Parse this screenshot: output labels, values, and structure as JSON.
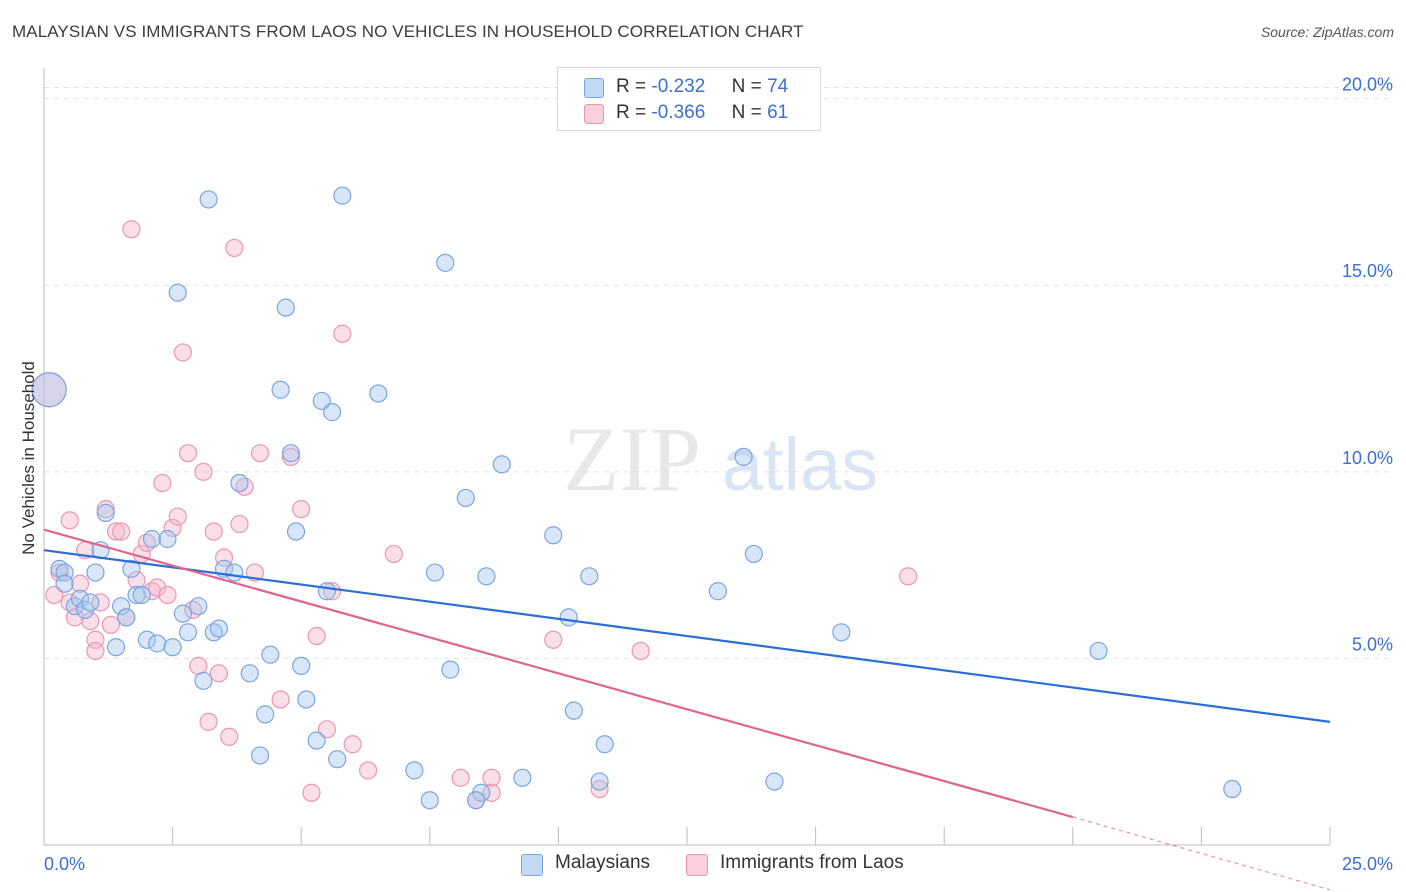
{
  "title": "MALAYSIAN VS IMMIGRANTS FROM LAOS NO VEHICLES IN HOUSEHOLD CORRELATION CHART",
  "source": "Source: ZipAtlas.com",
  "watermark": {
    "zip": "ZIP",
    "atlas": "atlas"
  },
  "legend": {
    "rows": [
      {
        "r_label": "R =",
        "r_value": "-0.232",
        "n_label": "N =",
        "n_value": "74",
        "color": "#a8c8f0"
      },
      {
        "r_label": "R =",
        "r_value": "-0.366",
        "n_label": "N =",
        "n_value": "61",
        "color": "#f7b8cc"
      }
    ]
  },
  "bottom_legend": [
    {
      "label": "Malaysians",
      "color": "#a8c8f0"
    },
    {
      "label": "Immigrants from Laos",
      "color": "#f7b8cc"
    }
  ],
  "colors": {
    "blue_fill": "#a8c8f0",
    "blue_stroke": "#7aa6e0",
    "blue_line": "#2a6fd6",
    "pink_fill": "#f7b8cc",
    "pink_stroke": "#ec95b2",
    "pink_line": "#e0648f",
    "grid": "#e2e2e2",
    "tick_label": "#3b6fd4"
  },
  "chart_data": {
    "type": "scatter",
    "title": "MALAYSIAN VS IMMIGRANTS FROM LAOS NO VEHICLES IN HOUSEHOLD CORRELATION CHART",
    "xlabel": "",
    "ylabel": "No Vehicles in Household",
    "xlim": [
      0,
      25
    ],
    "ylim": [
      0,
      20.5
    ],
    "x_tick_labels": [
      "0.0%",
      "25.0%"
    ],
    "y_ticks": [
      5,
      10,
      15,
      20
    ],
    "y_tick_labels": [
      "5.0%",
      "10.0%",
      "15.0%",
      "20.0%"
    ],
    "grid": true,
    "legend_position": "top-center",
    "series": [
      {
        "name": "Malaysians",
        "color": "#a8c8f0",
        "trend": {
          "x": [
            0,
            25
          ],
          "y": [
            7.9,
            3.3
          ]
        },
        "points": [
          {
            "x": 0.1,
            "y": 12.2,
            "big": true
          },
          {
            "x": 0.3,
            "y": 7.4
          },
          {
            "x": 0.4,
            "y": 7.3
          },
          {
            "x": 0.4,
            "y": 7.0
          },
          {
            "x": 0.6,
            "y": 6.4
          },
          {
            "x": 0.7,
            "y": 6.6
          },
          {
            "x": 0.8,
            "y": 6.3
          },
          {
            "x": 0.9,
            "y": 6.5
          },
          {
            "x": 1.0,
            "y": 7.3
          },
          {
            "x": 1.1,
            "y": 7.9
          },
          {
            "x": 1.2,
            "y": 8.9
          },
          {
            "x": 1.4,
            "y": 5.3
          },
          {
            "x": 1.5,
            "y": 6.4
          },
          {
            "x": 1.6,
            "y": 6.1
          },
          {
            "x": 1.7,
            "y": 7.4
          },
          {
            "x": 1.8,
            "y": 6.7
          },
          {
            "x": 1.9,
            "y": 6.7
          },
          {
            "x": 2.0,
            "y": 5.5
          },
          {
            "x": 2.1,
            "y": 8.2
          },
          {
            "x": 2.2,
            "y": 5.4
          },
          {
            "x": 2.4,
            "y": 8.2
          },
          {
            "x": 2.5,
            "y": 5.3
          },
          {
            "x": 2.6,
            "y": 14.8
          },
          {
            "x": 2.7,
            "y": 6.2
          },
          {
            "x": 2.8,
            "y": 5.7
          },
          {
            "x": 3.0,
            "y": 6.4
          },
          {
            "x": 3.1,
            "y": 4.4
          },
          {
            "x": 3.2,
            "y": 17.3
          },
          {
            "x": 3.3,
            "y": 5.7
          },
          {
            "x": 3.4,
            "y": 5.8
          },
          {
            "x": 3.5,
            "y": 7.4
          },
          {
            "x": 3.7,
            "y": 7.3
          },
          {
            "x": 3.8,
            "y": 9.7
          },
          {
            "x": 4.0,
            "y": 4.6
          },
          {
            "x": 4.2,
            "y": 2.4
          },
          {
            "x": 4.3,
            "y": 3.5
          },
          {
            "x": 4.4,
            "y": 5.1
          },
          {
            "x": 4.6,
            "y": 12.2
          },
          {
            "x": 4.7,
            "y": 14.4
          },
          {
            "x": 4.8,
            "y": 10.5
          },
          {
            "x": 4.9,
            "y": 8.4
          },
          {
            "x": 5.0,
            "y": 4.8
          },
          {
            "x": 5.1,
            "y": 3.9
          },
          {
            "x": 5.3,
            "y": 2.8
          },
          {
            "x": 5.4,
            "y": 11.9
          },
          {
            "x": 5.5,
            "y": 6.8
          },
          {
            "x": 5.6,
            "y": 11.6
          },
          {
            "x": 5.7,
            "y": 2.3
          },
          {
            "x": 5.8,
            "y": 17.4
          },
          {
            "x": 6.5,
            "y": 12.1
          },
          {
            "x": 7.2,
            "y": 2.0
          },
          {
            "x": 7.5,
            "y": 1.2
          },
          {
            "x": 7.6,
            "y": 7.3
          },
          {
            "x": 7.9,
            "y": 4.7
          },
          {
            "x": 7.8,
            "y": 15.6
          },
          {
            "x": 8.2,
            "y": 9.3
          },
          {
            "x": 8.5,
            "y": 1.4
          },
          {
            "x": 8.6,
            "y": 7.2
          },
          {
            "x": 8.9,
            "y": 10.2
          },
          {
            "x": 9.3,
            "y": 1.8
          },
          {
            "x": 9.9,
            "y": 8.3
          },
          {
            "x": 10.2,
            "y": 6.1
          },
          {
            "x": 10.3,
            "y": 3.6
          },
          {
            "x": 10.6,
            "y": 7.2
          },
          {
            "x": 10.8,
            "y": 1.7
          },
          {
            "x": 10.9,
            "y": 2.7
          },
          {
            "x": 13.1,
            "y": 6.8
          },
          {
            "x": 13.6,
            "y": 10.4
          },
          {
            "x": 13.8,
            "y": 7.8
          },
          {
            "x": 14.2,
            "y": 1.7
          },
          {
            "x": 15.5,
            "y": 5.7
          },
          {
            "x": 20.5,
            "y": 5.2
          },
          {
            "x": 23.1,
            "y": 1.5
          },
          {
            "x": 8.4,
            "y": 1.2
          }
        ]
      },
      {
        "name": "Immigrants from Laos",
        "color": "#f7b8cc",
        "trend": {
          "x": [
            0,
            20
          ],
          "y": [
            8.45,
            0.75
          ]
        },
        "trend_dashed": {
          "x": [
            20,
            25
          ],
          "y": [
            0.75,
            -1.2
          ]
        },
        "points": [
          {
            "x": 0.1,
            "y": 12.2,
            "big": true
          },
          {
            "x": 0.2,
            "y": 6.7
          },
          {
            "x": 0.3,
            "y": 7.3
          },
          {
            "x": 0.5,
            "y": 6.5
          },
          {
            "x": 0.5,
            "y": 8.7
          },
          {
            "x": 0.6,
            "y": 6.1
          },
          {
            "x": 0.7,
            "y": 7.0
          },
          {
            "x": 0.8,
            "y": 7.9
          },
          {
            "x": 0.9,
            "y": 6.0
          },
          {
            "x": 1.0,
            "y": 5.5
          },
          {
            "x": 1.0,
            "y": 5.2
          },
          {
            "x": 1.1,
            "y": 6.5
          },
          {
            "x": 1.2,
            "y": 9.0
          },
          {
            "x": 1.3,
            "y": 5.9
          },
          {
            "x": 1.4,
            "y": 8.4
          },
          {
            "x": 1.5,
            "y": 8.4
          },
          {
            "x": 1.6,
            "y": 6.1
          },
          {
            "x": 1.7,
            "y": 16.5
          },
          {
            "x": 1.8,
            "y": 7.1
          },
          {
            "x": 1.9,
            "y": 7.8
          },
          {
            "x": 2.0,
            "y": 8.1
          },
          {
            "x": 2.1,
            "y": 6.8
          },
          {
            "x": 2.2,
            "y": 6.9
          },
          {
            "x": 2.3,
            "y": 9.7
          },
          {
            "x": 2.4,
            "y": 6.7
          },
          {
            "x": 2.5,
            "y": 8.5
          },
          {
            "x": 2.6,
            "y": 8.8
          },
          {
            "x": 2.7,
            "y": 13.2
          },
          {
            "x": 2.8,
            "y": 10.5
          },
          {
            "x": 2.9,
            "y": 6.3
          },
          {
            "x": 3.0,
            "y": 4.8
          },
          {
            "x": 3.1,
            "y": 10.0
          },
          {
            "x": 3.2,
            "y": 3.3
          },
          {
            "x": 3.3,
            "y": 8.4
          },
          {
            "x": 3.4,
            "y": 4.6
          },
          {
            "x": 3.5,
            "y": 7.7
          },
          {
            "x": 3.6,
            "y": 2.9
          },
          {
            "x": 3.7,
            "y": 16.0
          },
          {
            "x": 3.8,
            "y": 8.6
          },
          {
            "x": 3.9,
            "y": 9.6
          },
          {
            "x": 4.1,
            "y": 7.3
          },
          {
            "x": 4.2,
            "y": 10.5
          },
          {
            "x": 4.6,
            "y": 3.9
          },
          {
            "x": 4.8,
            "y": 10.4
          },
          {
            "x": 5.0,
            "y": 9.0
          },
          {
            "x": 5.2,
            "y": 1.4
          },
          {
            "x": 5.3,
            "y": 5.6
          },
          {
            "x": 5.5,
            "y": 3.1
          },
          {
            "x": 5.6,
            "y": 6.8
          },
          {
            "x": 5.8,
            "y": 13.7
          },
          {
            "x": 6.0,
            "y": 2.7
          },
          {
            "x": 6.3,
            "y": 2.0
          },
          {
            "x": 6.8,
            "y": 7.8
          },
          {
            "x": 8.1,
            "y": 1.8
          },
          {
            "x": 8.4,
            "y": 1.2
          },
          {
            "x": 8.7,
            "y": 1.8
          },
          {
            "x": 8.7,
            "y": 1.4
          },
          {
            "x": 9.9,
            "y": 5.5
          },
          {
            "x": 10.8,
            "y": 1.5
          },
          {
            "x": 11.6,
            "y": 5.2
          },
          {
            "x": 16.8,
            "y": 7.2
          }
        ]
      }
    ]
  }
}
